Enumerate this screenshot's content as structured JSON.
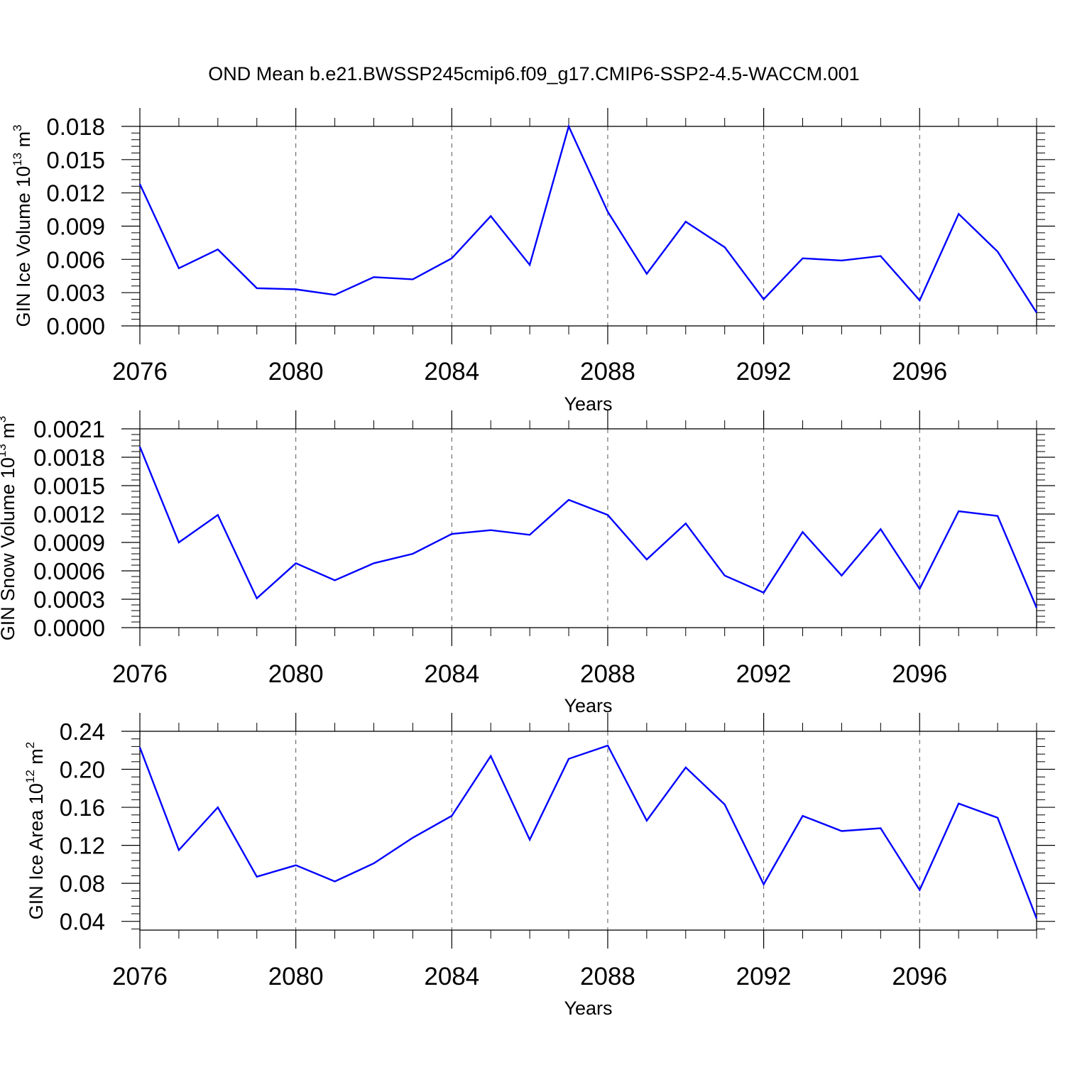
{
  "title": "OND Mean b.e21.BWSSP245cmip6.f09_g17.CMIP6-SSP2-4.5-WACCM.001",
  "line_color": "#0000ff",
  "chart_data": [
    {
      "type": "line",
      "ylabel": "GIN Ice Volume 10",
      "ylabel_exp": "13",
      "ylabel_unit": " m",
      "ylabel_unit_exp": "3",
      "xlabel": "Years",
      "xlim": [
        2076,
        2099
      ],
      "ylim": [
        0.0,
        0.018
      ],
      "x_ticks": [
        "2076",
        "2080",
        "2084",
        "2088",
        "2092",
        "2096"
      ],
      "y_ticks": [
        "0.000",
        "0.003",
        "0.006",
        "0.009",
        "0.012",
        "0.015",
        "0.018"
      ],
      "x": [
        2076,
        2077,
        2078,
        2079,
        2080,
        2081,
        2082,
        2083,
        2084,
        2085,
        2086,
        2087,
        2088,
        2089,
        2090,
        2091,
        2092,
        2093,
        2094,
        2095,
        2096,
        2097,
        2098,
        2099
      ],
      "values": [
        0.0128,
        0.0052,
        0.0069,
        0.0034,
        0.0033,
        0.0028,
        0.0044,
        0.0042,
        0.0061,
        0.0099,
        0.0055,
        0.018,
        0.0103,
        0.0047,
        0.0094,
        0.0071,
        0.0024,
        0.0061,
        0.0059,
        0.0063,
        0.0023,
        0.0101,
        0.0067,
        0.0012
      ]
    },
    {
      "type": "line",
      "ylabel": "GIN Snow Volume 10",
      "ylabel_exp": "13",
      "ylabel_unit": " m",
      "ylabel_unit_exp": "3",
      "xlabel": "Years",
      "xlim": [
        2076,
        2099
      ],
      "ylim": [
        0.0,
        0.0021
      ],
      "x_ticks": [
        "2076",
        "2080",
        "2084",
        "2088",
        "2092",
        "2096"
      ],
      "y_ticks": [
        "0.0000",
        "0.0003",
        "0.0006",
        "0.0009",
        "0.0012",
        "0.0015",
        "0.0018",
        "0.0021"
      ],
      "x": [
        2076,
        2077,
        2078,
        2079,
        2080,
        2081,
        2082,
        2083,
        2084,
        2085,
        2086,
        2087,
        2088,
        2089,
        2090,
        2091,
        2092,
        2093,
        2094,
        2095,
        2096,
        2097,
        2098,
        2099
      ],
      "values": [
        0.00191,
        0.0009,
        0.00119,
        0.00031,
        0.00068,
        0.0005,
        0.00068,
        0.00078,
        0.00099,
        0.00103,
        0.00098,
        0.00135,
        0.00119,
        0.00072,
        0.0011,
        0.00055,
        0.00037,
        0.00101,
        0.00055,
        0.00104,
        0.00041,
        0.00123,
        0.00118,
        0.00021
      ]
    },
    {
      "type": "line",
      "ylabel": "GIN Ice Area 10",
      "ylabel_exp": "12",
      "ylabel_unit": " m",
      "ylabel_unit_exp": "2",
      "xlabel": "Years",
      "xlim": [
        2076,
        2099
      ],
      "ylim": [
        0.0308,
        0.24
      ],
      "x_ticks": [
        "2076",
        "2080",
        "2084",
        "2088",
        "2092",
        "2096"
      ],
      "y_ticks": [
        "0.04",
        "0.08",
        "0.12",
        "0.16",
        "0.20",
        "0.24"
      ],
      "x": [
        2076,
        2077,
        2078,
        2079,
        2080,
        2081,
        2082,
        2083,
        2084,
        2085,
        2086,
        2087,
        2088,
        2089,
        2090,
        2091,
        2092,
        2093,
        2094,
        2095,
        2096,
        2097,
        2098,
        2099
      ],
      "values": [
        0.223,
        0.115,
        0.16,
        0.087,
        0.099,
        0.082,
        0.101,
        0.128,
        0.151,
        0.214,
        0.126,
        0.211,
        0.225,
        0.146,
        0.202,
        0.163,
        0.079,
        0.151,
        0.135,
        0.138,
        0.073,
        0.164,
        0.149,
        0.043
      ]
    }
  ]
}
